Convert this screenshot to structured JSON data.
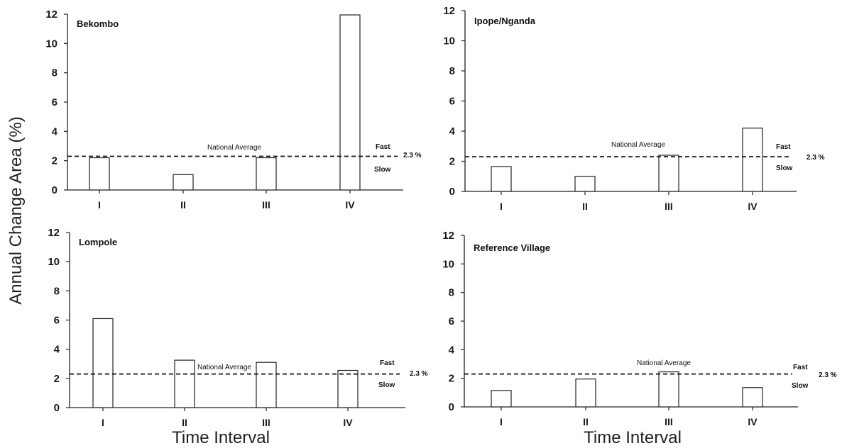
{
  "figure": {
    "ylabel": "Annual Change Area (%)",
    "xlabel": "Time Interval"
  },
  "colors": {
    "bar_fill": "#ffffff",
    "bar_stroke": "#222222",
    "axis": "#222222",
    "reference_line": "#111111"
  },
  "chart_data": [
    {
      "type": "bar",
      "title": "Bekombo",
      "categories": [
        "I",
        "II",
        "III",
        "IV"
      ],
      "values": [
        2.2,
        1.05,
        2.2,
        11.95
      ],
      "ylim": [
        0,
        12
      ],
      "yticks": [
        0,
        2,
        4,
        6,
        8,
        10,
        12
      ],
      "grid": false,
      "reference_line": {
        "value": 2.3,
        "label": "National Average",
        "value_label": "2.3 %",
        "above_label": "Fast",
        "below_label": "Slow",
        "style": "dashed"
      },
      "xlabel": "",
      "ylabel": ""
    },
    {
      "type": "bar",
      "title": "Ipope/Nganda",
      "categories": [
        "I",
        "II",
        "III",
        "IV"
      ],
      "values": [
        1.65,
        1.0,
        2.4,
        4.2
      ],
      "ylim": [
        0,
        12
      ],
      "yticks": [
        0,
        2,
        4,
        6,
        8,
        10,
        12
      ],
      "grid": false,
      "reference_line": {
        "value": 2.3,
        "label": "National Average",
        "value_label": "2.3 %",
        "above_label": "Fast",
        "below_label": "Slow",
        "style": "dashed"
      },
      "xlabel": "",
      "ylabel": ""
    },
    {
      "type": "bar",
      "title": "Lompole",
      "categories": [
        "I",
        "II",
        "III",
        "IV"
      ],
      "values": [
        6.1,
        3.25,
        3.1,
        2.55
      ],
      "ylim": [
        0,
        12
      ],
      "yticks": [
        0,
        2,
        4,
        6,
        8,
        10,
        12
      ],
      "grid": false,
      "reference_line": {
        "value": 2.3,
        "label": "National Average",
        "value_label": "2.3 %",
        "above_label": "Fast",
        "below_label": "Slow",
        "style": "dashed"
      },
      "xlabel": "Time Interval",
      "ylabel": ""
    },
    {
      "type": "bar",
      "title": "Reference Village",
      "categories": [
        "I",
        "II",
        "III",
        "IV"
      ],
      "values": [
        1.15,
        1.95,
        2.45,
        1.35
      ],
      "ylim": [
        0,
        12
      ],
      "yticks": [
        0,
        2,
        4,
        6,
        8,
        10,
        12
      ],
      "grid": false,
      "reference_line": {
        "value": 2.3,
        "label": "National Average",
        "value_label": "2.3 %",
        "above_label": "Fast",
        "below_label": "Slow",
        "style": "dashed"
      },
      "xlabel": "Time Interval",
      "ylabel": ""
    }
  ]
}
